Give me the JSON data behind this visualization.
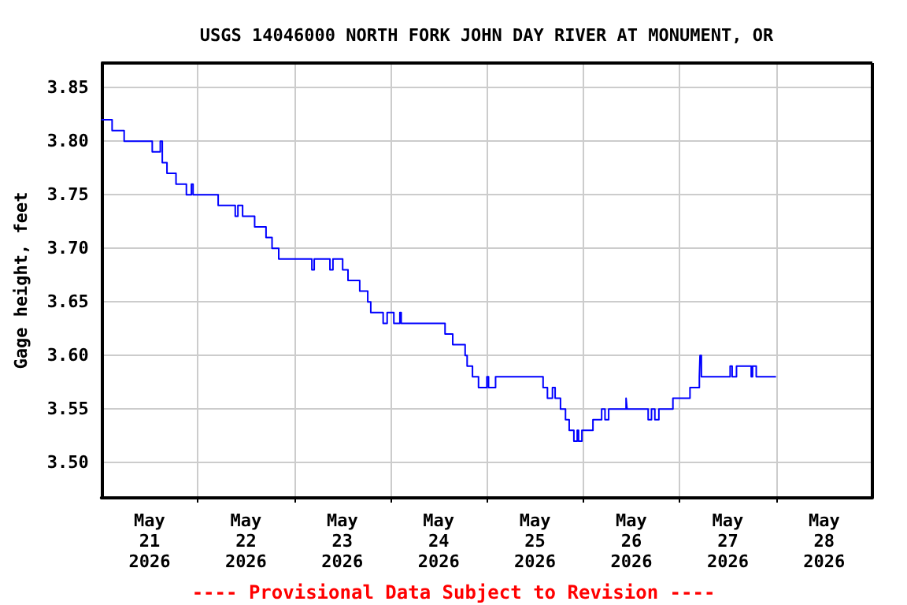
{
  "chart_data": {
    "type": "step",
    "title": "USGS 14046000 NORTH FORK JOHN DAY RIVER AT MONUMENT, OR",
    "ylabel": "Gage height, feet",
    "annotations": [
      "---- Provisional Data Subject to Revision ----"
    ],
    "x": [
      "2026-05-21T00:00",
      "2026-05-21T02:40",
      "2026-05-21T05:40",
      "2026-05-21T12:40",
      "2026-05-21T14:40",
      "2026-05-21T15:10",
      "2026-05-21T16:20",
      "2026-05-21T18:35",
      "2026-05-21T21:10",
      "2026-05-21T22:25",
      "2026-05-21T22:50",
      "2026-05-22T05:05",
      "2026-05-22T09:20",
      "2026-05-22T10:00",
      "2026-05-22T11:10",
      "2026-05-22T14:10",
      "2026-05-22T17:00",
      "2026-05-22T18:30",
      "2026-05-22T20:10",
      "2026-05-23T04:25",
      "2026-05-23T05:00",
      "2026-05-23T08:55",
      "2026-05-23T09:40",
      "2026-05-23T12:05",
      "2026-05-23T13:25",
      "2026-05-23T16:20",
      "2026-05-23T18:20",
      "2026-05-23T19:05",
      "2026-05-23T22:10",
      "2026-05-23T23:10",
      "2026-05-24T00:50",
      "2026-05-24T02:20",
      "2026-05-24T02:40",
      "2026-05-24T13:35",
      "2026-05-24T15:30",
      "2026-05-24T18:35",
      "2026-05-24T19:05",
      "2026-05-24T20:25",
      "2026-05-24T21:55",
      "2026-05-25T00:00",
      "2026-05-25T00:25",
      "2026-05-25T02:10",
      "2026-05-25T14:00",
      "2026-05-25T15:05",
      "2026-05-25T16:20",
      "2026-05-25T17:00",
      "2026-05-25T18:20",
      "2026-05-25T19:35",
      "2026-05-25T20:30",
      "2026-05-25T21:40",
      "2026-05-25T22:30",
      "2026-05-25T22:50",
      "2026-05-25T23:40",
      "2026-05-26T02:25",
      "2026-05-26T04:35",
      "2026-05-26T05:25",
      "2026-05-26T06:20",
      "2026-05-26T10:40",
      "2026-05-26T10:55",
      "2026-05-26T16:10",
      "2026-05-26T17:00",
      "2026-05-26T17:50",
      "2026-05-26T18:50",
      "2026-05-26T22:20",
      "2026-05-27T02:35",
      "2026-05-27T04:55",
      "2026-05-27T05:05",
      "2026-05-27T05:25",
      "2026-05-27T12:35",
      "2026-05-27T13:05",
      "2026-05-27T14:10",
      "2026-05-27T17:50",
      "2026-05-27T18:10",
      "2026-05-27T19:05",
      "2026-05-28T00:00"
    ],
    "series": [
      {
        "color": "#0000ff",
        "values": [
          3.82,
          3.81,
          3.8,
          3.79,
          3.8,
          3.78,
          3.77,
          3.76,
          3.75,
          3.76,
          3.75,
          3.74,
          3.73,
          3.74,
          3.73,
          3.72,
          3.71,
          3.7,
          3.69,
          3.68,
          3.69,
          3.68,
          3.69,
          3.68,
          3.67,
          3.66,
          3.65,
          3.64,
          3.63,
          3.64,
          3.63,
          3.64,
          3.63,
          3.62,
          3.61,
          3.6,
          3.59,
          3.58,
          3.57,
          3.58,
          3.57,
          3.58,
          3.57,
          3.56,
          3.57,
          3.56,
          3.55,
          3.54,
          3.53,
          3.52,
          3.53,
          3.52,
          3.53,
          3.54,
          3.55,
          3.54,
          3.55,
          3.56,
          3.55,
          3.54,
          3.55,
          3.54,
          3.55,
          3.56,
          3.57,
          3.58,
          3.6,
          3.58,
          3.59,
          3.58,
          3.59,
          3.58,
          3.59,
          3.58,
          3.58
        ]
      }
    ],
    "xlim": [
      "2026-05-21T00:00",
      "2026-05-29T00:00"
    ],
    "xticks": [
      {
        "value": "2026-05-21T12:00",
        "label": "May\n21\n2026"
      },
      {
        "value": "2026-05-22T12:00",
        "label": "May\n22\n2026"
      },
      {
        "value": "2026-05-23T12:00",
        "label": "May\n23\n2026"
      },
      {
        "value": "2026-05-24T12:00",
        "label": "May\n24\n2026"
      },
      {
        "value": "2026-05-25T12:00",
        "label": "May\n25\n2026"
      },
      {
        "value": "2026-05-26T12:00",
        "label": "May\n26\n2026"
      },
      {
        "value": "2026-05-27T12:00",
        "label": "May\n27\n2026"
      },
      {
        "value": "2026-05-28T12:00",
        "label": "May\n28\n2026"
      },
      {
        "value": "2026-05-22T00:00",
        "label": null
      },
      {
        "value": "2026-05-23T00:00",
        "label": null
      },
      {
        "value": "2026-05-24T00:00",
        "label": null
      },
      {
        "value": "2026-05-25T00:00",
        "label": null
      },
      {
        "value": "2026-05-26T00:00",
        "label": null
      },
      {
        "value": "2026-05-27T00:00",
        "label": null
      },
      {
        "value": "2026-05-28T00:00",
        "label": null
      }
    ],
    "ylim": [
      3.467,
      3.873
    ],
    "yticks": [
      {
        "value": 3.5,
        "label": "3.50"
      },
      3.55,
      {
        "value": 3.6,
        "label": "3.60"
      },
      3.65,
      {
        "value": 3.7,
        "label": "3.70"
      },
      3.75,
      {
        "value": 3.8,
        "label": "3.80"
      },
      3.85
    ],
    "grid": true,
    "marker": "none",
    "line_style": "solid"
  }
}
